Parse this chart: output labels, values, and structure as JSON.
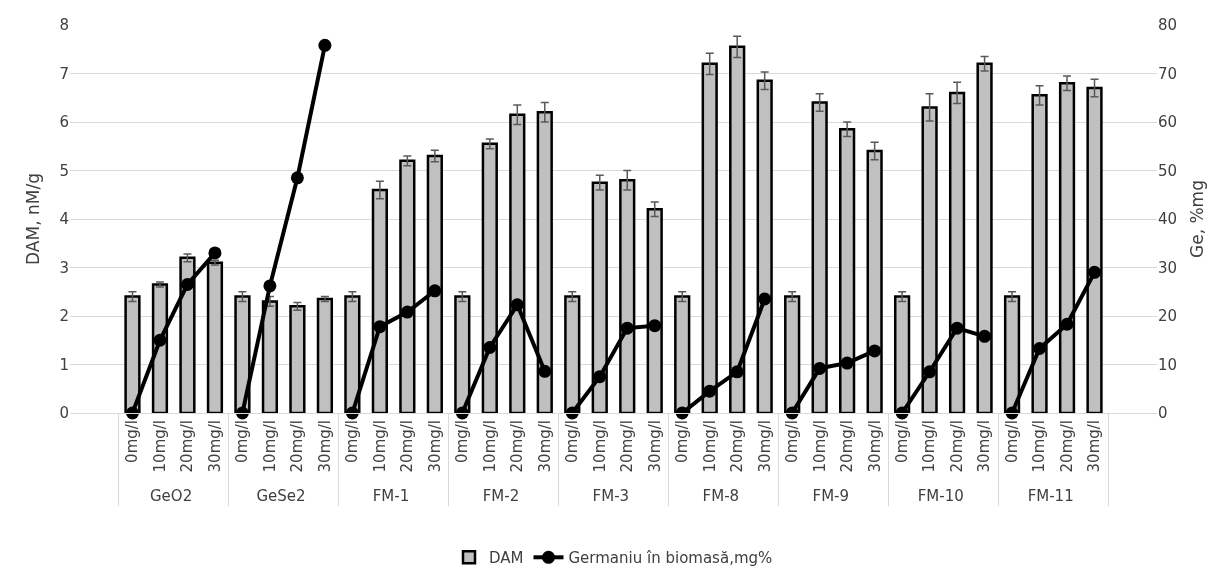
{
  "chart_data": {
    "type": "bar",
    "ylabel": "DAM, nM/g",
    "y2label": "Ge, %mg",
    "categories": [
      "0mg/l",
      "10mg/l",
      "20mg/l",
      "30mg/l",
      "0mg/l",
      "10mg/l",
      "20mg/l",
      "30mg/l",
      "0mg/l",
      "10mg/l",
      "20mg/l",
      "30mg/l",
      "0mg/l",
      "10mg/l",
      "20mg/l",
      "30mg/l",
      "0mg/l",
      "10mg/l",
      "20mg/l",
      "30mg/l",
      "0mg/l",
      "10mg/l",
      "20mg/l",
      "30mg/l",
      "0mg/l",
      "10mg/l",
      "20mg/l",
      "30mg/l",
      "0mg/l",
      "10mg/l",
      "20mg/l",
      "30mg/l",
      "0mg/l",
      "10mg/l",
      "20mg/l",
      "30mg/l"
    ],
    "annotations": [
      "GeO2",
      "GeSe2",
      "FM-1",
      "FM-2",
      "FM-3",
      "FM-8",
      "FM-9",
      "FM-10",
      "FM-11"
    ],
    "series": [
      {
        "name": "DAM",
        "color": "#c0c0c0",
        "values": [
          2.4,
          2.65,
          3.2,
          3.1,
          2.4,
          2.3,
          2.2,
          2.35,
          2.4,
          4.6,
          5.2,
          5.3,
          2.4,
          5.55,
          6.15,
          6.2,
          2.4,
          4.75,
          4.8,
          4.2,
          2.4,
          7.2,
          7.55,
          6.85,
          2.4,
          6.4,
          5.85,
          5.4,
          2.4,
          6.3,
          6.6,
          7.2,
          2.4,
          6.55,
          6.8,
          6.7
        ],
        "errors": [
          0.1,
          0.05,
          0.08,
          0.05,
          0.1,
          0.1,
          0.08,
          0.05,
          0.1,
          0.18,
          0.1,
          0.12,
          0.1,
          0.1,
          0.2,
          0.2,
          0.1,
          0.15,
          0.2,
          0.15,
          0.1,
          0.22,
          0.22,
          0.18,
          0.1,
          0.18,
          0.15,
          0.18,
          0.1,
          0.28,
          0.22,
          0.15,
          0.1,
          0.2,
          0.15,
          0.18
        ]
      },
      {
        "name": "Germaniu în biomasă,mg%",
        "type": "line",
        "axis": "y2",
        "color": "#000000",
        "values": [
          0,
          15,
          26.5,
          33,
          0,
          26.2,
          48.5,
          75.8,
          0,
          17.8,
          20.8,
          25.2,
          0,
          13.5,
          22.3,
          8.6,
          0,
          7.5,
          17.5,
          18,
          0,
          4.5,
          8.5,
          23.5,
          0,
          9.2,
          10.3,
          12.8,
          0,
          8.5,
          17.5,
          15.8,
          0,
          13.3,
          18.3,
          29
        ]
      }
    ],
    "ylim": [
      0,
      8
    ],
    "yticks": [
      0,
      1,
      2,
      3,
      4,
      5,
      6,
      7,
      8
    ],
    "y2lim": [
      0,
      80
    ],
    "y2ticks": [
      0,
      10,
      20,
      30,
      40,
      50,
      60,
      70,
      80
    ],
    "grid": "y",
    "legend": "bottom",
    "marker": "circle",
    "line_style": "solid"
  }
}
